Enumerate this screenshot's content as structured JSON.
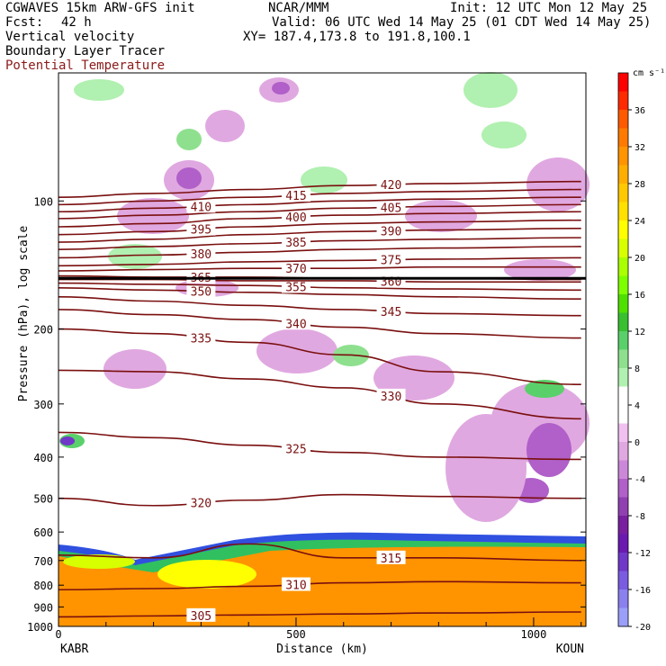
{
  "header": {
    "title": "CGWAVES 15km ARW-GFS init",
    "center": "NCAR/MMM",
    "init": "Init: 12 UTC Mon 12 May 25",
    "fcst_label": "Fcst:",
    "fcst_value": "42 h",
    "valid": "Valid: 06 UTC Wed 14 May 25 (01 CDT Wed 14 May 25)",
    "field1": "Vertical velocity",
    "field2": "Boundary Layer Tracer",
    "field3": "Potential Temperature",
    "xy": "XY= 187.4,173.8 to 191.8,100.1"
  },
  "chart_data": {
    "type": "heatmap",
    "xlabel": "Distance (km)",
    "ylabel": "Pressure (hPa), log scale",
    "y_log_scale": true,
    "xlim": [
      0,
      1110
    ],
    "ylim": [
      1000,
      50
    ],
    "x_ticks": [
      0,
      500,
      1000
    ],
    "y_ticks": [
      100,
      200,
      300,
      400,
      500,
      600,
      700,
      800,
      900,
      1000
    ],
    "endpoints": {
      "left": "KABR",
      "right": "KOUN"
    },
    "colorbar": {
      "unit": "cm s⁻¹",
      "labels": [
        "36",
        "32",
        "28",
        "24",
        "20",
        "16",
        "12",
        "8",
        "4",
        "0",
        "-4",
        "-8",
        "-12",
        "-16",
        "-20"
      ],
      "colors": [
        "#ff0000",
        "#ff2a00",
        "#ff5a00",
        "#ff7a00",
        "#ff9400",
        "#ffae00",
        "#ffc800",
        "#ffe000",
        "#ffff00",
        "#d8ff00",
        "#aaff00",
        "#7eff00",
        "#4ee000",
        "#38c030",
        "#5ad06a",
        "#8ee08e",
        "#b0f0b0",
        "#ffffff",
        "#ffffff",
        "#f0c0f0",
        "#e0a8e0",
        "#cc88d8",
        "#b060c8",
        "#9040b0",
        "#7820a0",
        "#6a1ab0",
        "#7038c8",
        "#7a5ce0",
        "#8a80ee",
        "#9aa0f8"
      ]
    },
    "theta_contours": [
      {
        "label": "305",
        "p": [
          950,
          945,
          940,
          935,
          930,
          925
        ]
      },
      {
        "label": "310",
        "p": [
          820,
          815,
          805,
          790,
          785,
          790
        ]
      },
      {
        "label": "315",
        "p": [
          680,
          690,
          640,
          690,
          690,
          700
        ]
      },
      {
        "label": "320",
        "p": [
          500,
          520,
          505,
          490,
          495,
          500
        ]
      },
      {
        "label": "325",
        "p": [
          350,
          360,
          375,
          390,
          400,
          405
        ]
      },
      {
        "label": "330",
        "p": [
          250,
          252,
          262,
          275,
          300,
          325
        ]
      },
      {
        "label": "335",
        "p": [
          200,
          205,
          215,
          230,
          252,
          270
        ]
      },
      {
        "label": "340",
        "p": [
          180,
          185,
          190,
          198,
          205,
          210
        ]
      },
      {
        "label": "345",
        "p": [
          168,
          172,
          176,
          180,
          184,
          186
        ]
      },
      {
        "label": "350",
        "p": [
          160,
          162,
          164,
          166,
          168,
          170
        ]
      },
      {
        "label": "355",
        "p": [
          156,
          157,
          158,
          160,
          161,
          162
        ]
      },
      {
        "label": "360",
        "p": [
          153,
          153,
          154,
          154,
          155,
          155
        ]
      },
      {
        "label": "365",
        "p": [
          150,
          151,
          151,
          152,
          152,
          153
        ]
      },
      {
        "label": "370",
        "p": [
          146,
          145,
          144,
          144,
          143,
          143
        ]
      },
      {
        "label": "375",
        "p": [
          142,
          141,
          139,
          138,
          137,
          136
        ]
      },
      {
        "label": "380",
        "p": [
          136,
          134,
          132,
          130,
          129,
          128
        ]
      },
      {
        "label": "385",
        "p": [
          130,
          128,
          126,
          124,
          123,
          122
        ]
      },
      {
        "label": "390",
        "p": [
          125,
          123,
          120,
          118,
          117,
          116
        ]
      },
      {
        "label": "395",
        "p": [
          120,
          118,
          115,
          113,
          112,
          111
        ]
      },
      {
        "label": "400",
        "p": [
          115,
          113,
          110,
          108,
          107,
          106
        ]
      },
      {
        "label": "405",
        "p": [
          110,
          108,
          106,
          104,
          103,
          102
        ]
      },
      {
        "label": "410",
        "p": [
          106,
          104,
          102,
          100,
          99,
          98
        ]
      },
      {
        "label": "415",
        "p": [
          102,
          100,
          98,
          96,
          95,
          94
        ]
      },
      {
        "label": "420",
        "p": [
          98,
          96,
          94,
          92,
          91,
          90
        ]
      }
    ],
    "theta_x": [
      0,
      200,
      400,
      600,
      800,
      1100
    ]
  }
}
